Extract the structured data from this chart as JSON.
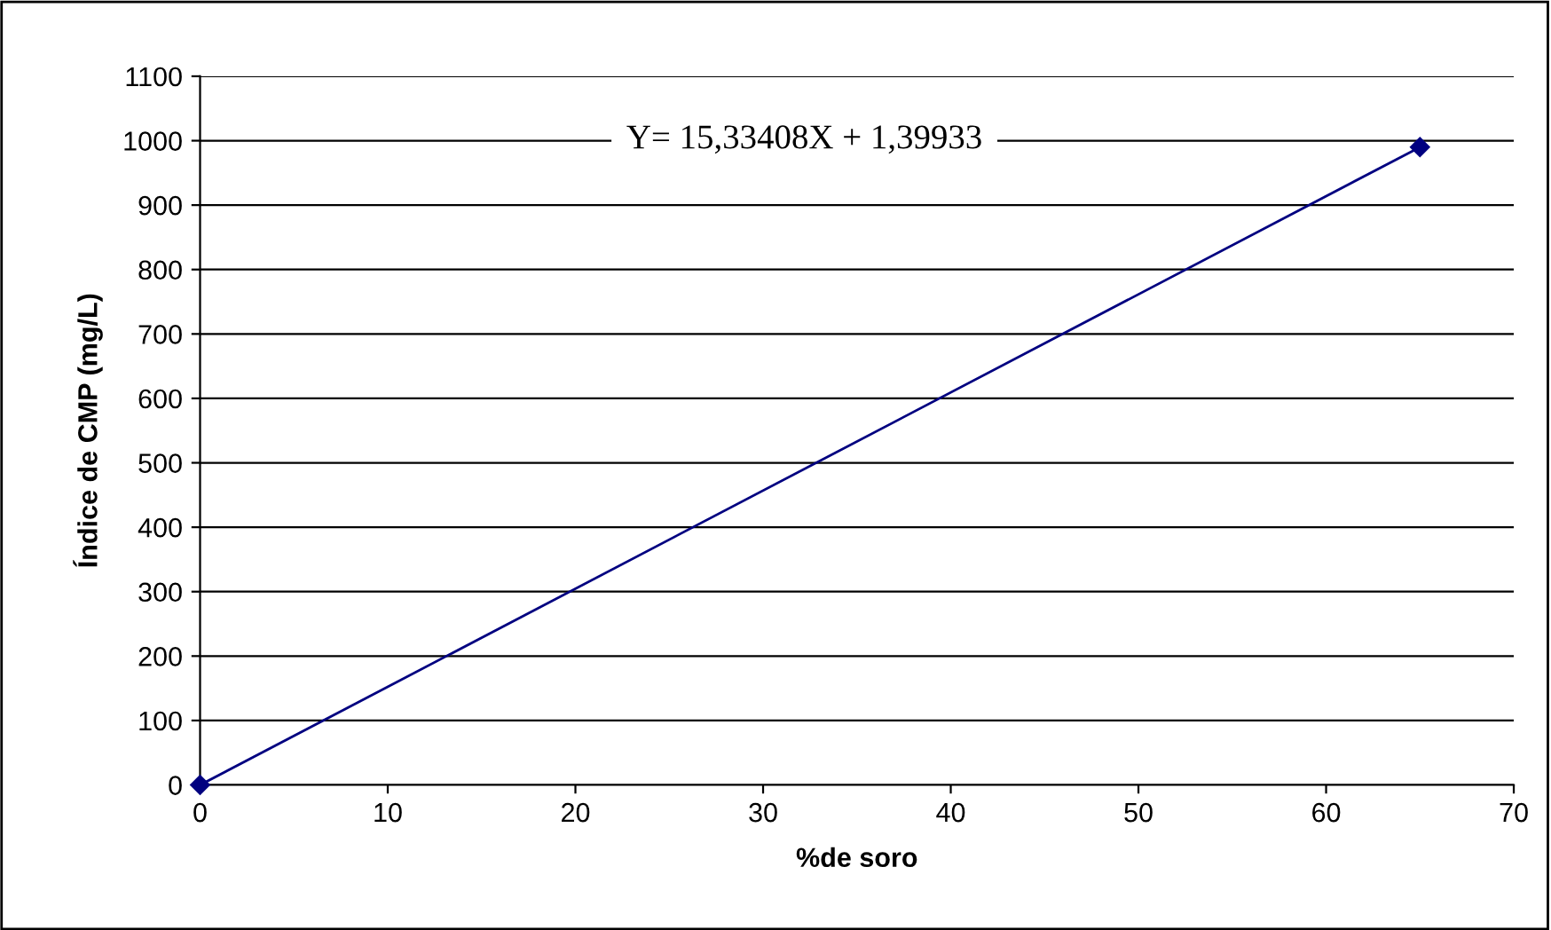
{
  "chart_data": {
    "type": "line",
    "xlabel": "%de soro",
    "ylabel": "Índice de CMP (mg/L)",
    "x": [
      0,
      65
    ],
    "series": [
      {
        "color": "#000080",
        "values": [
          0,
          990
        ]
      }
    ],
    "xlim": [
      0,
      70
    ],
    "xticks": [
      0,
      10,
      20,
      30,
      40,
      50,
      60,
      70
    ],
    "ylim": [
      0,
      1100
    ],
    "yticks": [
      0,
      100,
      200,
      300,
      400,
      500,
      600,
      700,
      800,
      900,
      1000,
      1100
    ],
    "grid": "y",
    "marker": "diamond",
    "line_style": "solid",
    "annotations": [
      "Y= 15,33408X + 1,39933"
    ]
  }
}
